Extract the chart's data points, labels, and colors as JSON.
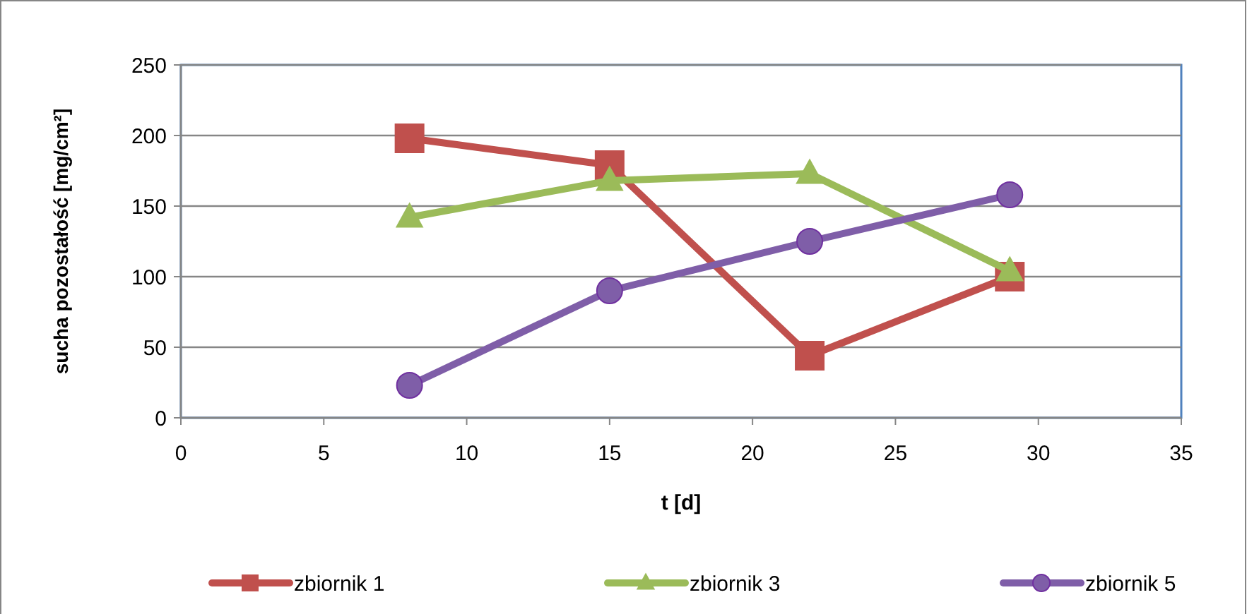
{
  "chart_data": {
    "type": "line",
    "xlabel": "t [d]",
    "ylabel": "sucha pozostałość [mg/cm²]",
    "x": [
      8,
      15,
      22,
      29
    ],
    "xlim": [
      0,
      35
    ],
    "xticks": [
      0,
      5,
      10,
      15,
      20,
      25,
      30,
      35
    ],
    "ylim": [
      0,
      250
    ],
    "yticks": [
      0,
      50,
      100,
      150,
      200,
      250
    ],
    "grid": "y",
    "legend": "bottom",
    "series": [
      {
        "name": "zbiornik 1",
        "color": "#c0504d",
        "marker": "square",
        "values": [
          198,
          179,
          44,
          100
        ]
      },
      {
        "name": "zbiornik 3",
        "color": "#9bbb59",
        "marker": "triangle",
        "values": [
          142,
          168,
          173,
          104
        ]
      },
      {
        "name": "zbiornik 5",
        "color": "#7f5ea8",
        "marker": "circle",
        "values": [
          23,
          90,
          125,
          158
        ]
      }
    ]
  }
}
